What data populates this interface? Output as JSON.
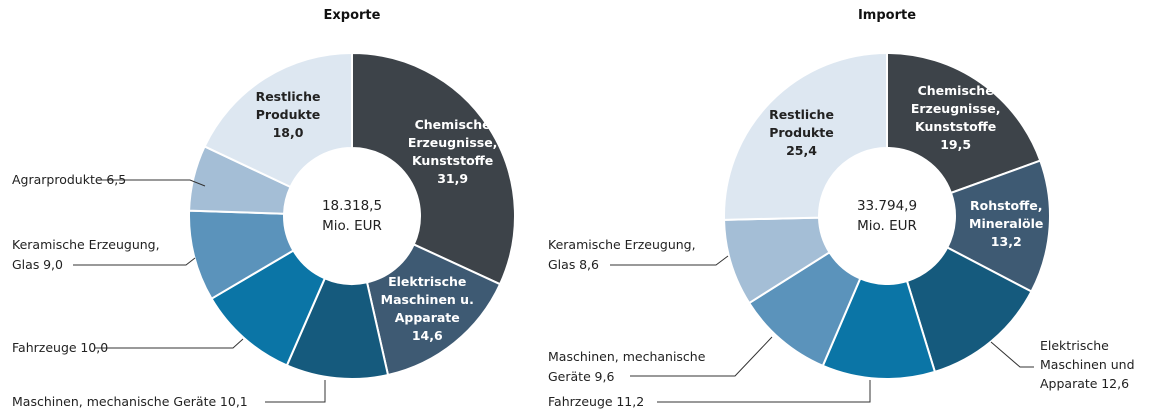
{
  "chart_data": [
    {
      "type": "donut",
      "title": "Exporte",
      "categories": [
        "Chemische Erzeugnisse, Kunststoffe",
        "Elektrische Maschinen u. Apparate",
        "Maschinen, mechanische Geräte",
        "Fahrzeuge",
        "Keramische Erzeugung, Glas",
        "Agrarprodukte",
        "Restliche Produkte"
      ],
      "values": [
        31.9,
        14.6,
        10.1,
        10.0,
        9.0,
        6.5,
        18.0
      ],
      "value_labels": [
        "31,9",
        "14,6",
        "10,1",
        "10,0",
        "9,0",
        "6,5",
        "18,0"
      ],
      "colors": [
        "#3d4349",
        "#3e5a73",
        "#155a7d",
        "#0b75a6",
        "#5b93bb",
        "#a4bed6",
        "#dde7f1"
      ],
      "center_text": [
        "18.318,5",
        "Mio. EUR"
      ]
    },
    {
      "type": "donut",
      "title": "Importe",
      "categories": [
        "Chemische Erzeugnisse, Kunststoffe",
        "Rohstoffe, Mineralöle",
        "Elektrische Maschinen und Apparate",
        "Fahrzeuge",
        "Maschinen, mechanische Geräte",
        "Keramische Erzeugung, Glas",
        "Restliche Produkte"
      ],
      "values": [
        19.5,
        13.2,
        12.6,
        11.2,
        9.6,
        8.6,
        25.4
      ],
      "value_labels": [
        "19,5",
        "13,2",
        "12,6",
        "11,2",
        "9,6",
        "8,6",
        "25,4"
      ],
      "colors": [
        "#3d4349",
        "#3e5a73",
        "#155a7d",
        "#0b75a6",
        "#5b93bb",
        "#a4bed6",
        "#dde7f1"
      ],
      "center_text": [
        "33.794,9",
        "Mio. EUR"
      ]
    }
  ]
}
